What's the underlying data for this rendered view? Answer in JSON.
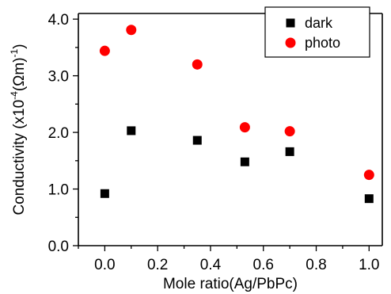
{
  "chart_data": {
    "type": "scatter",
    "title": "",
    "xlabel": "Mole ratio(Ag/PbPc)",
    "ylabel": {
      "prefix": "Conductivity (x10",
      "exp1": "-4",
      "middle": "(Ωm)",
      "exp2": "-1",
      "suffix": ")"
    },
    "xlim": [
      -0.1,
      1.05
    ],
    "ylim": [
      0.0,
      4.1
    ],
    "xticks": [
      0.0,
      0.2,
      0.4,
      0.6,
      0.8,
      1.0
    ],
    "xtick_labels": [
      "0.0",
      "0.2",
      "0.4",
      "0.6",
      "0.8",
      "1.0"
    ],
    "yticks": [
      0.0,
      1.0,
      2.0,
      3.0,
      4.0
    ],
    "ytick_labels": [
      "0.0",
      "1.0",
      "2.0",
      "3.0",
      "4.0"
    ],
    "grid": false,
    "legend_position": "top-right",
    "series": [
      {
        "name": "dark",
        "marker": "square",
        "color": "#000000",
        "x": [
          0.0,
          0.1,
          0.35,
          0.53,
          0.7,
          1.0
        ],
        "y": [
          0.92,
          2.03,
          1.86,
          1.48,
          1.66,
          0.83
        ]
      },
      {
        "name": "photo",
        "marker": "circle",
        "color": "#ff0000",
        "x": [
          0.0,
          0.1,
          0.35,
          0.53,
          0.7,
          1.0
        ],
        "y": [
          3.44,
          3.81,
          3.2,
          2.09,
          2.02,
          1.25
        ]
      }
    ]
  }
}
